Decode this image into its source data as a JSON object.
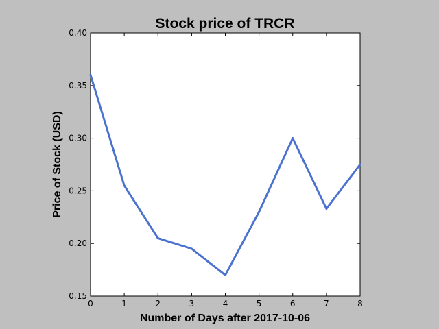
{
  "chart_data": {
    "type": "line",
    "title": "Stock price of TRCR",
    "xlabel": "Number of Days after 2017-10-06",
    "ylabel": "Price of Stock (USD)",
    "x": [
      0,
      1,
      2,
      3,
      4,
      5,
      6,
      7,
      8
    ],
    "series": [
      {
        "values": [
          0.36,
          0.255,
          0.205,
          0.195,
          0.17,
          0.23,
          0.3,
          0.233,
          0.275
        ]
      }
    ],
    "xlim": [
      0,
      8
    ],
    "ylim": [
      0.15,
      0.4
    ],
    "xticks": [
      "0",
      "1",
      "2",
      "3",
      "4",
      "5",
      "6",
      "7",
      "8"
    ],
    "yticks": [
      "0.15",
      "0.20",
      "0.25",
      "0.30",
      "0.35",
      "0.40"
    ],
    "grid": false,
    "line_color": "#4c72cf",
    "background_color": "#bfbfbf",
    "plot_background_color": "#ffffff"
  }
}
